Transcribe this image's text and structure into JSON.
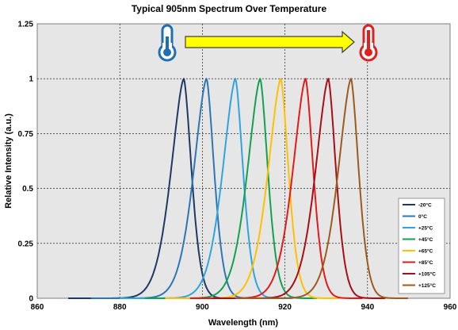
{
  "chart_data": {
    "type": "line",
    "title": "Typical 905nm Spectrum Over Temperature",
    "xlabel": "Wavelength (nm)",
    "ylabel": "Relative Intensity (a.u.)",
    "xlim": [
      860,
      960
    ],
    "ylim": [
      0,
      1.25
    ],
    "x_ticks": [
      "860",
      "880",
      "900",
      "920",
      "940",
      "960"
    ],
    "y_ticks": [
      "0",
      "0.25",
      "0.5",
      "0.75",
      "1",
      "1.25"
    ],
    "grid": true,
    "legend_position": "bottom-right",
    "peak_intensity": 1.0,
    "temperature_annotation": {
      "direction": "increasing temperature",
      "cold_icon_color": "#1f6fb5",
      "hot_icon_color": "#e02020",
      "arrow_color": "#ffff00"
    },
    "series": [
      {
        "name": "-20°C",
        "color": "#1f3864",
        "peak_nm": 895.5,
        "left_half_width_nm": 3.3,
        "right_half_width_nm": 2.0
      },
      {
        "name": "0°C",
        "color": "#2e75b6",
        "peak_nm": 901.0,
        "left_half_width_nm": 3.3,
        "right_half_width_nm": 2.0
      },
      {
        "name": "+25°C",
        "color": "#2fa4e0",
        "peak_nm": 908.0,
        "left_half_width_nm": 3.3,
        "right_half_width_nm": 2.0
      },
      {
        "name": "+45°C",
        "color": "#13a052",
        "peak_nm": 914.0,
        "left_half_width_nm": 3.3,
        "right_half_width_nm": 2.0
      },
      {
        "name": "+65°C",
        "color": "#ffc000",
        "peak_nm": 919.0,
        "left_half_width_nm": 3.3,
        "right_half_width_nm": 2.0
      },
      {
        "name": "+85°C",
        "color": "#e31a1c",
        "peak_nm": 925.0,
        "left_half_width_nm": 3.3,
        "right_half_width_nm": 2.0
      },
      {
        "name": "+105°C",
        "color": "#a50f15",
        "peak_nm": 930.5,
        "left_half_width_nm": 3.3,
        "right_half_width_nm": 2.0
      },
      {
        "name": "+125°C",
        "color": "#9c5a1e",
        "peak_nm": 936.0,
        "left_half_width_nm": 3.3,
        "right_half_width_nm": 2.0
      }
    ]
  }
}
